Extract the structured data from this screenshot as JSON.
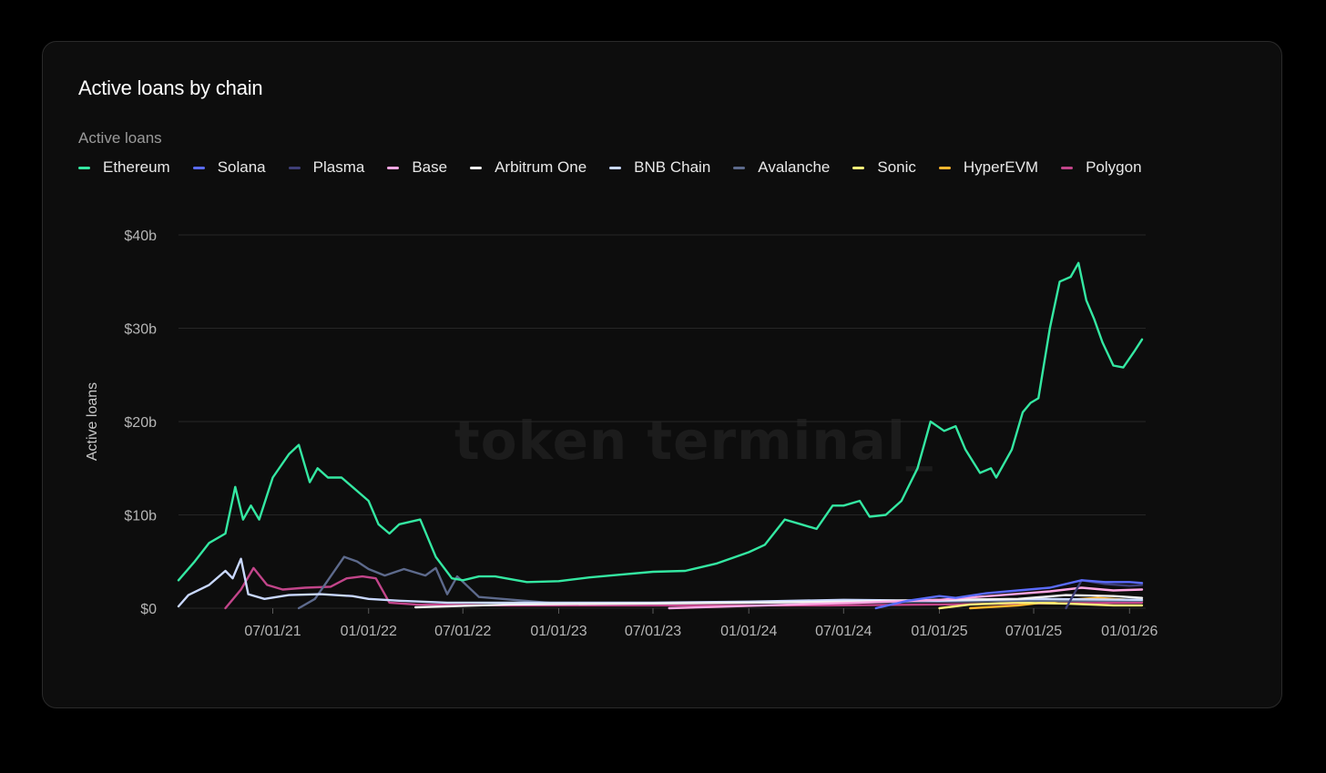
{
  "card": {
    "title": "Active loans by chain",
    "legend_title": "Active loans",
    "watermark": "token terminal_"
  },
  "chart_data": {
    "type": "line",
    "title": "Active loans by chain",
    "ylabel": "Active loans",
    "xlabel": "",
    "ylim": [
      0,
      40
    ],
    "y_unit": "billion USD",
    "y_ticks": [
      {
        "value": 0,
        "label": "$0"
      },
      {
        "value": 10,
        "label": "$10b"
      },
      {
        "value": 20,
        "label": "$20b"
      },
      {
        "value": 30,
        "label": "$30b"
      },
      {
        "value": 40,
        "label": "$40b"
      }
    ],
    "xlim": [
      "2021-01-01",
      "2026-02-01"
    ],
    "x_ticks": [
      {
        "date": "2021-07-01",
        "label": "07/01/21"
      },
      {
        "date": "2022-01-01",
        "label": "01/01/22"
      },
      {
        "date": "2022-07-01",
        "label": "07/01/22"
      },
      {
        "date": "2023-01-01",
        "label": "01/01/23"
      },
      {
        "date": "2023-07-01",
        "label": "07/01/23"
      },
      {
        "date": "2024-01-01",
        "label": "01/01/24"
      },
      {
        "date": "2024-07-01",
        "label": "07/01/24"
      },
      {
        "date": "2025-01-01",
        "label": "01/01/25"
      },
      {
        "date": "2025-07-01",
        "label": "07/01/25"
      },
      {
        "date": "2026-01-01",
        "label": "01/01/26"
      }
    ],
    "grid": "horizontal",
    "legend_position": "top-left",
    "series": [
      {
        "name": "Ethereum",
        "color": "#34e8a2",
        "points": [
          [
            "2021-01-01",
            3.0
          ],
          [
            "2021-02-01",
            5.0
          ],
          [
            "2021-03-01",
            7.0
          ],
          [
            "2021-04-01",
            8.0
          ],
          [
            "2021-04-20",
            13.0
          ],
          [
            "2021-05-05",
            9.5
          ],
          [
            "2021-05-20",
            11.0
          ],
          [
            "2021-06-05",
            9.5
          ],
          [
            "2021-07-01",
            14.0
          ],
          [
            "2021-08-01",
            16.5
          ],
          [
            "2021-08-20",
            17.5
          ],
          [
            "2021-09-10",
            13.5
          ],
          [
            "2021-09-25",
            15.0
          ],
          [
            "2021-10-15",
            14.0
          ],
          [
            "2021-11-10",
            14.0
          ],
          [
            "2021-12-01",
            13.0
          ],
          [
            "2022-01-01",
            11.5
          ],
          [
            "2022-01-20",
            9.0
          ],
          [
            "2022-02-10",
            8.0
          ],
          [
            "2022-03-01",
            9.0
          ],
          [
            "2022-04-10",
            9.5
          ],
          [
            "2022-05-10",
            5.5
          ],
          [
            "2022-06-10",
            3.2
          ],
          [
            "2022-07-01",
            3.0
          ],
          [
            "2022-08-01",
            3.4
          ],
          [
            "2022-09-01",
            3.4
          ],
          [
            "2022-11-01",
            2.8
          ],
          [
            "2023-01-01",
            2.9
          ],
          [
            "2023-03-01",
            3.3
          ],
          [
            "2023-05-01",
            3.6
          ],
          [
            "2023-07-01",
            3.9
          ],
          [
            "2023-09-01",
            4.0
          ],
          [
            "2023-11-01",
            4.8
          ],
          [
            "2024-01-01",
            6.0
          ],
          [
            "2024-02-01",
            6.8
          ],
          [
            "2024-03-10",
            9.5
          ],
          [
            "2024-04-10",
            9.0
          ],
          [
            "2024-05-10",
            8.5
          ],
          [
            "2024-06-10",
            11.0
          ],
          [
            "2024-07-01",
            11.0
          ],
          [
            "2024-08-01",
            11.5
          ],
          [
            "2024-08-20",
            9.8
          ],
          [
            "2024-09-20",
            10.0
          ],
          [
            "2024-10-20",
            11.5
          ],
          [
            "2024-11-20",
            15.0
          ],
          [
            "2024-12-15",
            20.0
          ],
          [
            "2025-01-10",
            19.0
          ],
          [
            "2025-02-01",
            19.5
          ],
          [
            "2025-02-20",
            17.0
          ],
          [
            "2025-03-20",
            14.5
          ],
          [
            "2025-04-10",
            15.0
          ],
          [
            "2025-04-20",
            14.0
          ],
          [
            "2025-05-20",
            17.0
          ],
          [
            "2025-06-10",
            21.0
          ],
          [
            "2025-06-25",
            22.0
          ],
          [
            "2025-07-10",
            22.5
          ],
          [
            "2025-08-01",
            30.0
          ],
          [
            "2025-08-20",
            35.0
          ],
          [
            "2025-09-10",
            35.5
          ],
          [
            "2025-09-25",
            37.0
          ],
          [
            "2025-10-10",
            33.0
          ],
          [
            "2025-10-25",
            31.0
          ],
          [
            "2025-11-10",
            28.5
          ],
          [
            "2025-12-01",
            26.0
          ],
          [
            "2025-12-20",
            25.8
          ],
          [
            "2026-01-10",
            27.5
          ],
          [
            "2026-01-25",
            28.8
          ]
        ]
      },
      {
        "name": "Solana",
        "color": "#5b6cff",
        "points": [
          [
            "2024-09-01",
            0.0
          ],
          [
            "2024-11-01",
            0.8
          ],
          [
            "2025-01-01",
            1.3
          ],
          [
            "2025-02-01",
            1.1
          ],
          [
            "2025-04-01",
            1.6
          ],
          [
            "2025-06-01",
            1.9
          ],
          [
            "2025-08-01",
            2.2
          ],
          [
            "2025-10-01",
            3.0
          ],
          [
            "2025-11-15",
            2.8
          ],
          [
            "2026-01-01",
            2.8
          ],
          [
            "2026-01-25",
            2.7
          ]
        ]
      },
      {
        "name": "Plasma",
        "color": "#3f3f78",
        "points": [
          [
            "2025-09-01",
            0.0
          ],
          [
            "2025-10-01",
            3.0
          ],
          [
            "2025-11-15",
            2.6
          ],
          [
            "2026-01-01",
            2.4
          ],
          [
            "2026-01-25",
            2.5
          ]
        ]
      },
      {
        "name": "Base",
        "color": "#ffa8e4",
        "points": [
          [
            "2023-08-01",
            0.0
          ],
          [
            "2024-02-01",
            0.3
          ],
          [
            "2024-08-01",
            0.6
          ],
          [
            "2025-01-01",
            0.9
          ],
          [
            "2025-05-01",
            1.4
          ],
          [
            "2025-08-01",
            1.8
          ],
          [
            "2025-10-01",
            2.2
          ],
          [
            "2025-12-01",
            1.9
          ],
          [
            "2026-01-25",
            2.0
          ]
        ]
      },
      {
        "name": "Arbitrum One",
        "color": "#f2f2f2",
        "points": [
          [
            "2022-04-01",
            0.1
          ],
          [
            "2022-10-01",
            0.4
          ],
          [
            "2023-06-01",
            0.5
          ],
          [
            "2024-01-01",
            0.6
          ],
          [
            "2024-07-01",
            0.7
          ],
          [
            "2025-01-01",
            0.9
          ],
          [
            "2025-06-01",
            1.0
          ],
          [
            "2025-09-01",
            1.4
          ],
          [
            "2025-12-01",
            1.3
          ],
          [
            "2026-01-25",
            1.1
          ]
        ]
      },
      {
        "name": "BNB Chain",
        "color": "#c9d8ff",
        "points": [
          [
            "2021-01-01",
            0.2
          ],
          [
            "2021-01-20",
            1.4
          ],
          [
            "2021-03-01",
            2.5
          ],
          [
            "2021-04-01",
            4.0
          ],
          [
            "2021-04-15",
            3.2
          ],
          [
            "2021-05-01",
            5.3
          ],
          [
            "2021-05-15",
            1.5
          ],
          [
            "2021-06-15",
            1.0
          ],
          [
            "2021-08-01",
            1.4
          ],
          [
            "2021-10-01",
            1.5
          ],
          [
            "2021-12-01",
            1.3
          ],
          [
            "2022-01-01",
            1.0
          ],
          [
            "2022-03-01",
            0.8
          ],
          [
            "2022-06-01",
            0.6
          ],
          [
            "2023-01-01",
            0.6
          ],
          [
            "2023-07-01",
            0.6
          ],
          [
            "2024-01-01",
            0.7
          ],
          [
            "2024-07-01",
            0.9
          ],
          [
            "2025-01-01",
            0.8
          ],
          [
            "2025-07-01",
            1.0
          ],
          [
            "2026-01-25",
            0.9
          ]
        ]
      },
      {
        "name": "Avalanche",
        "color": "#5d6a8c",
        "points": [
          [
            "2021-08-20",
            0.0
          ],
          [
            "2021-09-20",
            1.0
          ],
          [
            "2021-10-15",
            3.0
          ],
          [
            "2021-11-15",
            5.5
          ],
          [
            "2021-12-10",
            5.0
          ],
          [
            "2022-01-01",
            4.2
          ],
          [
            "2022-02-01",
            3.5
          ],
          [
            "2022-03-10",
            4.2
          ],
          [
            "2022-04-20",
            3.5
          ],
          [
            "2022-05-10",
            4.3
          ],
          [
            "2022-06-01",
            1.5
          ],
          [
            "2022-06-20",
            3.4
          ],
          [
            "2022-08-01",
            1.2
          ],
          [
            "2023-01-01",
            0.5
          ],
          [
            "2023-07-01",
            0.5
          ],
          [
            "2024-01-01",
            0.6
          ],
          [
            "2024-07-01",
            0.6
          ],
          [
            "2025-01-01",
            0.7
          ],
          [
            "2025-07-01",
            0.8
          ],
          [
            "2026-01-25",
            0.8
          ]
        ]
      },
      {
        "name": "Sonic",
        "color": "#fff27a",
        "points": [
          [
            "2025-01-01",
            0.0
          ],
          [
            "2025-03-01",
            0.4
          ],
          [
            "2025-06-01",
            0.6
          ],
          [
            "2025-09-01",
            0.5
          ],
          [
            "2025-12-01",
            0.3
          ],
          [
            "2026-01-25",
            0.3
          ]
        ]
      },
      {
        "name": "HyperEVM",
        "color": "#ffb62e",
        "points": [
          [
            "2025-03-01",
            0.0
          ],
          [
            "2025-06-01",
            0.3
          ],
          [
            "2025-09-01",
            0.9
          ],
          [
            "2025-11-01",
            1.1
          ],
          [
            "2026-01-25",
            0.8
          ]
        ]
      },
      {
        "name": "Polygon",
        "color": "#c2458a",
        "points": [
          [
            "2021-04-01",
            0.0
          ],
          [
            "2021-05-01",
            2.0
          ],
          [
            "2021-05-25",
            4.3
          ],
          [
            "2021-06-20",
            2.5
          ],
          [
            "2021-07-20",
            2.0
          ],
          [
            "2021-09-01",
            2.2
          ],
          [
            "2021-10-20",
            2.3
          ],
          [
            "2021-11-20",
            3.2
          ],
          [
            "2021-12-20",
            3.4
          ],
          [
            "2022-01-15",
            3.2
          ],
          [
            "2022-02-10",
            0.6
          ],
          [
            "2022-04-01",
            0.4
          ],
          [
            "2022-10-01",
            0.3
          ],
          [
            "2023-06-01",
            0.3
          ],
          [
            "2024-01-01",
            0.3
          ],
          [
            "2024-06-01",
            0.3
          ],
          [
            "2025-01-01",
            0.4
          ],
          [
            "2025-06-01",
            0.5
          ],
          [
            "2026-01-25",
            0.6
          ]
        ]
      }
    ]
  }
}
